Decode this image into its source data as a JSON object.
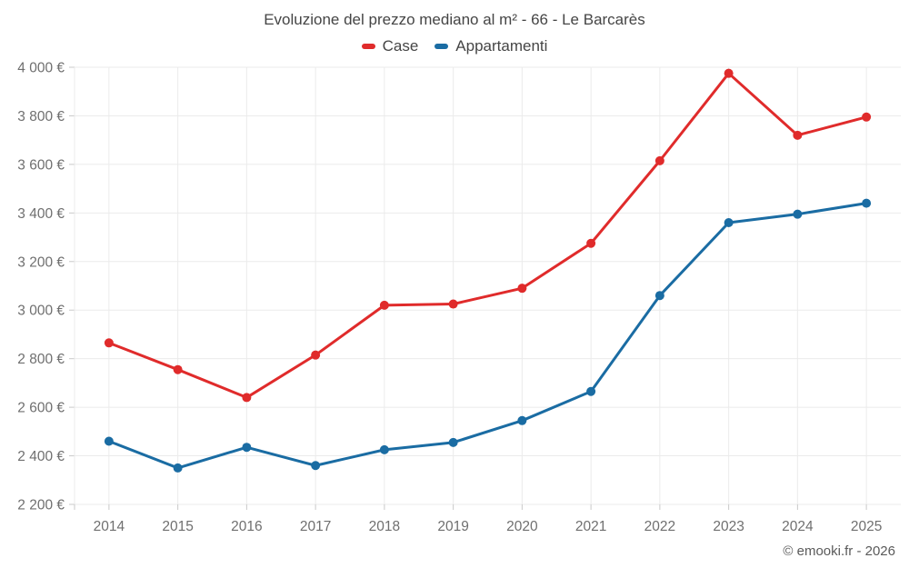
{
  "header": {
    "title": "Evoluzione del prezzo mediano al m² - 66 - Le Barcarès"
  },
  "footer": {
    "credit": "© emooki.fr - 2026"
  },
  "chart_data": {
    "type": "line",
    "title": "Evoluzione del prezzo mediano al m² - 66 - Le Barcarès",
    "categories": [
      "2014",
      "2015",
      "2016",
      "2017",
      "2018",
      "2019",
      "2020",
      "2021",
      "2022",
      "2023",
      "2024",
      "2025"
    ],
    "series": [
      {
        "name": "Case",
        "color": "#e02b2b",
        "values": [
          2865,
          2755,
          2640,
          2815,
          3020,
          3025,
          3090,
          3275,
          3615,
          3975,
          3720,
          3795
        ]
      },
      {
        "name": "Appartamenti",
        "color": "#1a6ca3",
        "values": [
          2460,
          2350,
          2435,
          2360,
          2425,
          2455,
          2545,
          2665,
          3060,
          3360,
          3395,
          3440
        ]
      }
    ],
    "xlabel": "",
    "ylabel": "",
    "ylim": [
      2200,
      4000
    ],
    "ytick_step": 200,
    "y_tick_labels": [
      "2 200 €",
      "2 400 €",
      "2 600 €",
      "2 800 €",
      "3 000 €",
      "3 200 €",
      "3 400 €",
      "3 600 €",
      "3 800 €",
      "4 000 €"
    ],
    "grid": true,
    "legend_position": "top",
    "unit": "€"
  },
  "style": {
    "background": "#ffffff",
    "grid_color": "#ebebeb",
    "tick_color": "#c9c9c9",
    "axis_label_color": "#6f6f6f",
    "title_color": "#454545",
    "footer_color": "#5a5a5a"
  }
}
